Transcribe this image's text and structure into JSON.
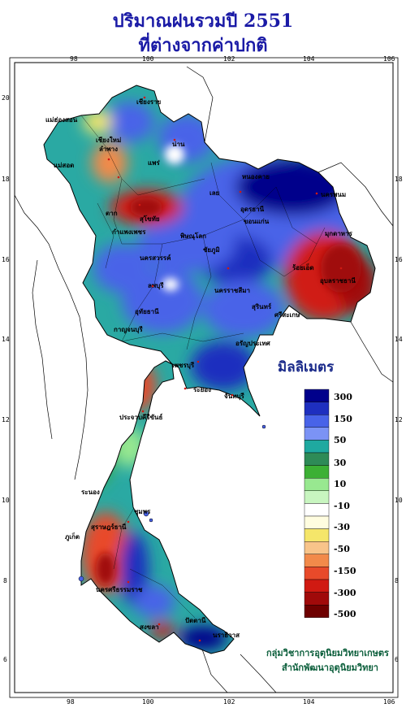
{
  "title_line1": "ปริมาณฝนรวมปี  2551",
  "title_line2": "ที่ต่างจากค่าปกติ",
  "axes": {
    "lon_ticks": [
      "98",
      "100",
      "102",
      "104",
      "106"
    ],
    "lat_ticks": [
      "20",
      "18",
      "16",
      "14",
      "12",
      "10",
      "8",
      "6"
    ]
  },
  "legend": {
    "title": "มิลลิเมตร",
    "labels": [
      "300",
      "150",
      "50",
      "30",
      "10",
      "-10",
      "-30",
      "-50",
      "-150",
      "-300",
      "-500"
    ],
    "colors": [
      "#00008b",
      "#1e2fbf",
      "#4863e8",
      "#7b93f5",
      "#1fa9a0",
      "#2e8b57",
      "#3cb034",
      "#98e890",
      "#c8f5c0",
      "#ffffff",
      "#fffde0",
      "#f5e66a",
      "#f8c48a",
      "#f28a4a",
      "#e84a2a",
      "#d01a12",
      "#a00a0a",
      "#6e0000"
    ]
  },
  "credits": {
    "line1": "กลุ่มวิชาการอุตุนิยมวิทยาเกษตร",
    "line2": "สำนักพัฒนาอุตุนิยมวิทยา"
  },
  "places": [
    "เชียงราย",
    "แม่ฮ่องสอน",
    "น่าน",
    "เชียงใหม่",
    "ลำพาง",
    "แพร่",
    "แม่สอด",
    "ตาก",
    "เลย",
    "หนองคาย",
    "นครพนม",
    "มุกดาหาร",
    "อุบลราชธานี",
    "นครราชสีมา",
    "ขอนแก่น",
    "ชัยภูมิ",
    "นครสวรรค์",
    "ลพบุรี",
    "สุรินทร์",
    "อรัญประเทศ",
    "ระยอง",
    "จันทบุรี",
    "ประจวบคีรีขันธ์",
    "ชุมพร",
    "ระนอง",
    "สุราษฎร์ธานี",
    "ภูเก็ต",
    "นครศรีธรรมราช",
    "สงขลา",
    "ปัตตานี",
    "นราธิวาส",
    "พิษณุโลก",
    "กาญจนบุรี",
    "เพชรบุรี",
    "สุโขทัย",
    "กำแพงเพชร",
    "อุทัยธานี",
    "ร้อยเอ็ด",
    "ศรีสะเกษ",
    "อุดรธานี"
  ]
}
